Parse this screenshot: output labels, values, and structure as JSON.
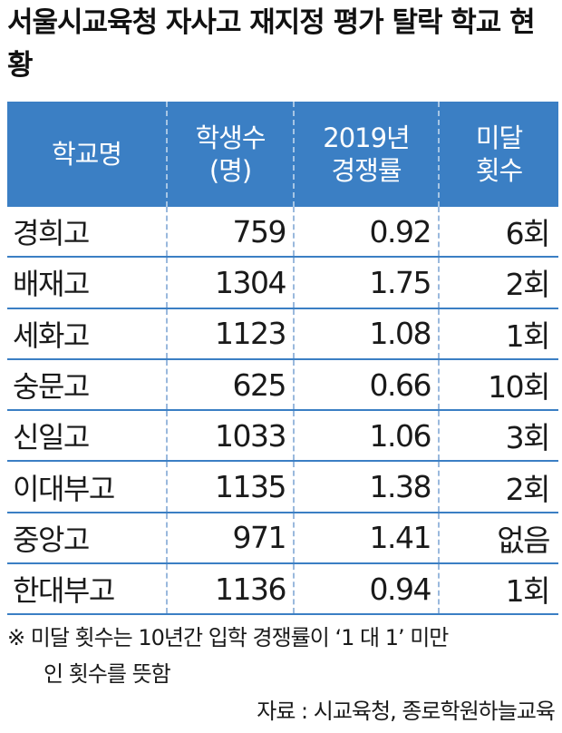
{
  "title": "서울시교육청 자사고 재지정 평가 탈락 학교 현황",
  "table": {
    "headers": [
      {
        "line1": "학교명",
        "line2": ""
      },
      {
        "line1": "학생수",
        "line2": "(명)"
      },
      {
        "line1": "2019년",
        "line2": "경쟁률"
      },
      {
        "line1": "미달",
        "line2": "횟수"
      }
    ],
    "rows": [
      {
        "school": "경희고",
        "students": "759",
        "rate": "0.92",
        "shortfall": "6회"
      },
      {
        "school": "배재고",
        "students": "1304",
        "rate": "1.75",
        "shortfall": "2회"
      },
      {
        "school": "세화고",
        "students": "1123",
        "rate": "1.08",
        "shortfall": "1회"
      },
      {
        "school": "숭문고",
        "students": "625",
        "rate": "0.66",
        "shortfall": "10회"
      },
      {
        "school": "신일고",
        "students": "1033",
        "rate": "1.06",
        "shortfall": "3회"
      },
      {
        "school": "이대부고",
        "students": "1135",
        "rate": "1.38",
        "shortfall": "2회"
      },
      {
        "school": "중앙고",
        "students": "971",
        "rate": "1.41",
        "shortfall": "없음"
      },
      {
        "school": "한대부고",
        "students": "1136",
        "rate": "0.94",
        "shortfall": "1회"
      }
    ]
  },
  "note": {
    "line1": "※ 미달 횟수는 10년간 입학 경쟁률이 ‘1 대 1’ 미만",
    "line2": "인 횟수를 뜻함"
  },
  "source": "자료 : 시교육청, 종로학원하늘교육",
  "colors": {
    "header_bg": "#3b7fc4",
    "header_text": "#ffffff",
    "row_border": "#3b7fc4"
  }
}
